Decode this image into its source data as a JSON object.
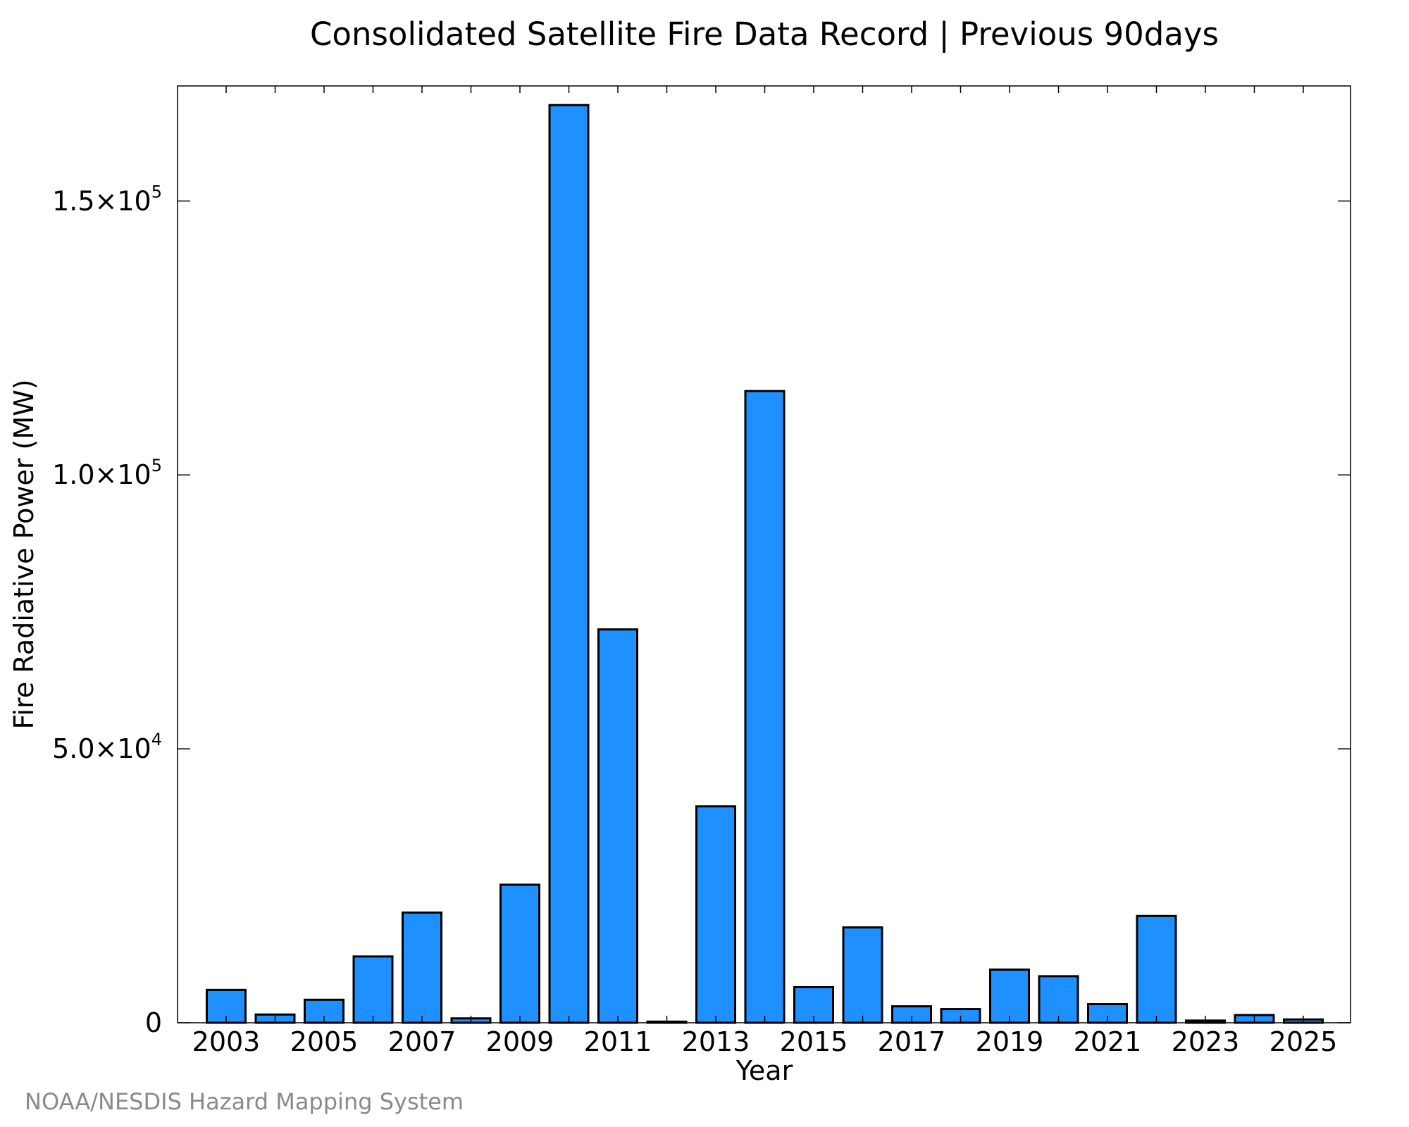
{
  "chart_data": {
    "type": "bar",
    "title": "Consolidated Satellite Fire Data Record | Previous 90days",
    "xlabel": "Year",
    "ylabel": "Fire Radiative Power (MW)",
    "categories": [
      "2003",
      "2004",
      "2005",
      "2006",
      "2007",
      "2008",
      "2009",
      "2010",
      "2011",
      "2012",
      "2013",
      "2014",
      "2015",
      "2016",
      "2017",
      "2018",
      "2019",
      "2020",
      "2021",
      "2022",
      "2023",
      "2024",
      "2025"
    ],
    "values": [
      6000,
      1500,
      4200,
      12100,
      20100,
      800,
      25200,
      167500,
      71800,
      200,
      39500,
      115300,
      6500,
      17400,
      3000,
      2500,
      9700,
      8500,
      3400,
      19500,
      400,
      1400,
      600
    ],
    "ylim": [
      0,
      171000
    ],
    "yticks": [
      {
        "value": 0,
        "mantissa": "0",
        "exponent": ""
      },
      {
        "value": 50000,
        "mantissa": "5.0×10",
        "exponent": "4"
      },
      {
        "value": 100000,
        "mantissa": "1.0×10",
        "exponent": "5"
      },
      {
        "value": 150000,
        "mantissa": "1.5×10",
        "exponent": "5"
      }
    ],
    "xtick_labels": [
      "2003",
      "2005",
      "2007",
      "2009",
      "2011",
      "2013",
      "2015",
      "2017",
      "2019",
      "2021",
      "2023",
      "2025"
    ],
    "grid": false,
    "bar_color": "#1e90ff",
    "bar_edge_color": "#000000"
  },
  "credit": "NOAA/NESDIS Hazard Mapping System"
}
